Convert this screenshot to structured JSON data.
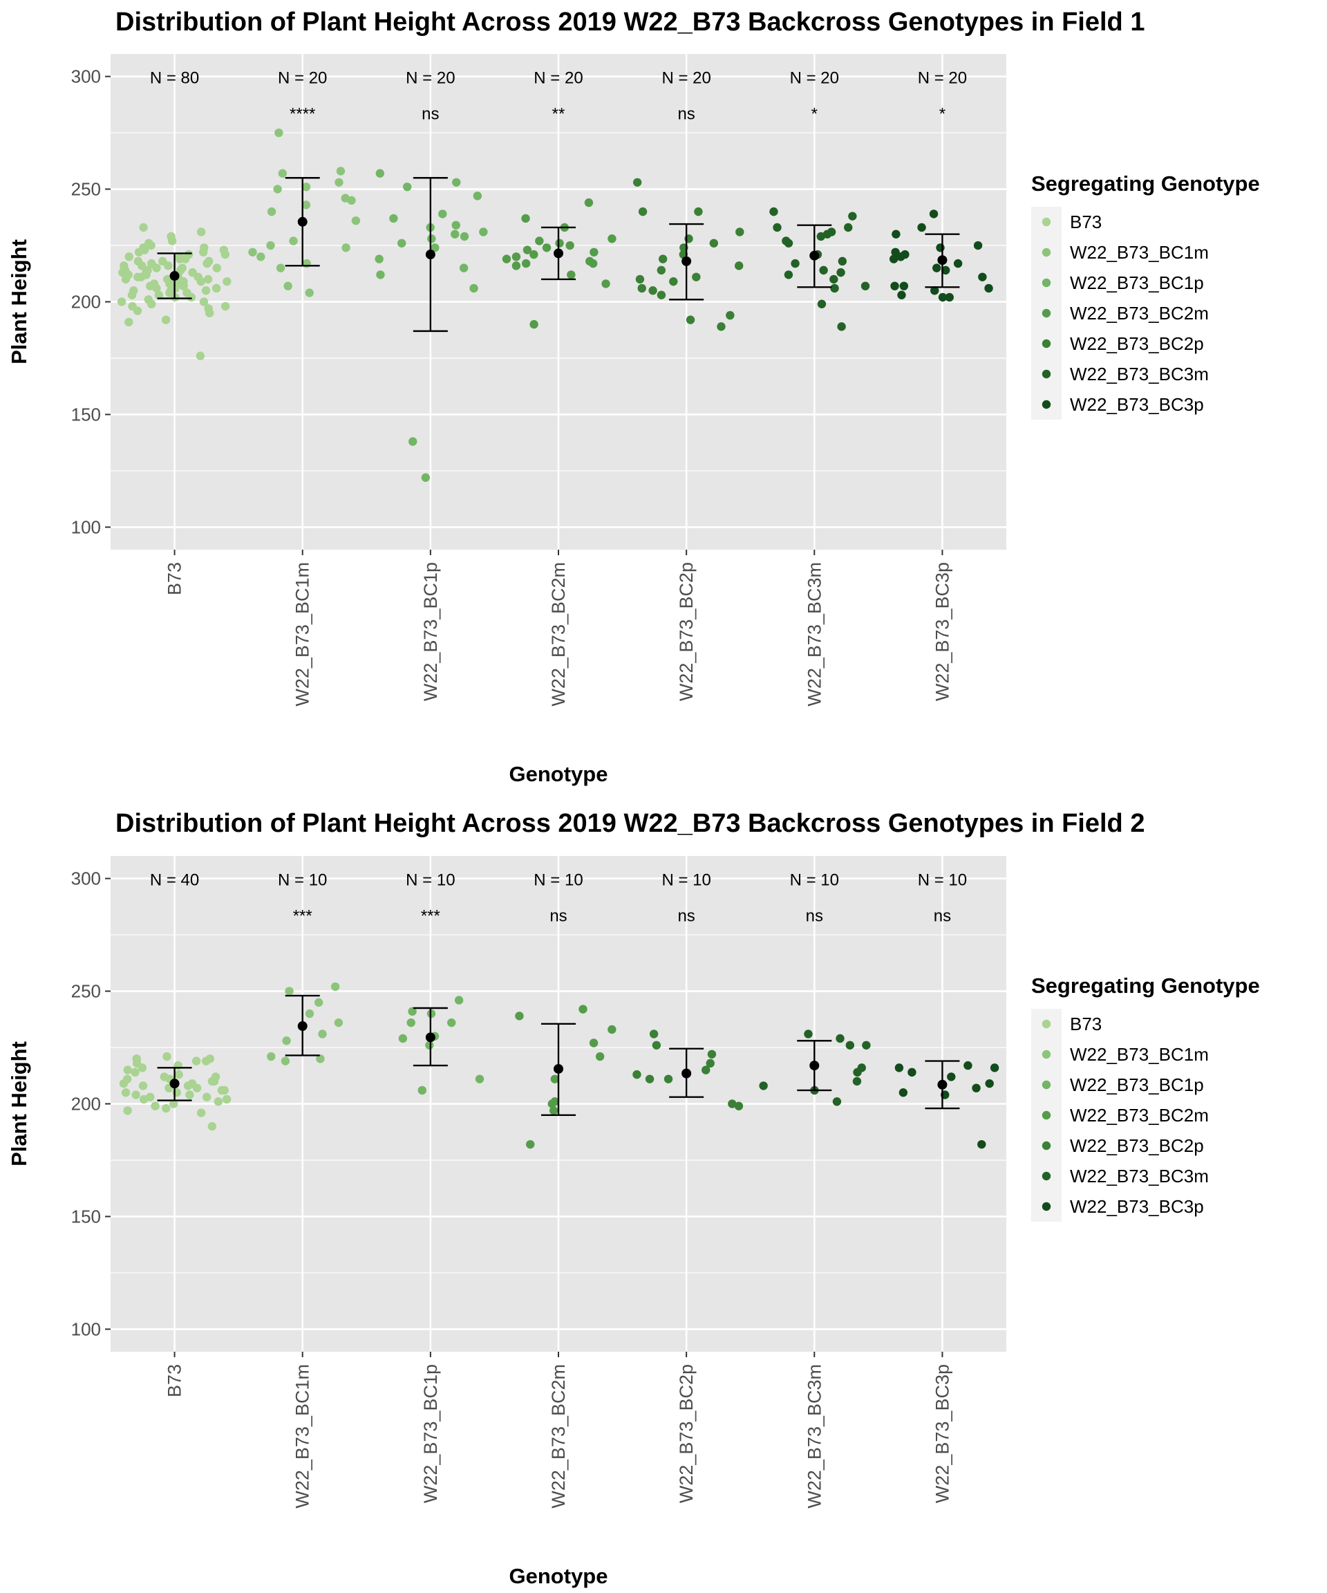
{
  "colors": {
    "panel_bg": "#e6e6e6",
    "grid": "#ffffff",
    "text": "#000000",
    "tick_text": "#4d4d4d",
    "mean_marker": "#000000",
    "genotype_colors": [
      "#a8d391",
      "#8dc47c",
      "#72b565",
      "#549c4a",
      "#3a8035",
      "#236226",
      "#124b1c"
    ]
  },
  "chart_data": [
    {
      "type": "scatter",
      "title": "Distribution of Plant Height Across 2019 W22_B73 Backcross Genotypes in Field 1",
      "xlabel": "Genotype",
      "ylabel": "Plant Height",
      "ylim": [
        90,
        310
      ],
      "yticks": [
        100,
        150,
        200,
        250,
        300
      ],
      "legend_title": "Segregating Genotype",
      "legend_position": "right",
      "categories": [
        "B73",
        "W22_B73_BC1m",
        "W22_B73_BC1p",
        "W22_B73_BC2m",
        "W22_B73_BC2p",
        "W22_B73_BC3m",
        "W22_B73_BC3p"
      ],
      "legend_entries": [
        "B73",
        "W22_B73_BC1m",
        "W22_B73_BC1p",
        "W22_B73_BC2m",
        "W22_B73_BC2p",
        "W22_B73_BC3m",
        "W22_B73_BC3p"
      ],
      "n_labels": [
        "N = 80",
        "N = 20",
        "N = 20",
        "N = 20",
        "N = 20",
        "N = 20",
        "N = 20"
      ],
      "significance": [
        "",
        "****",
        "ns",
        "**",
        "ns",
        "*",
        "*"
      ],
      "means": [
        211.5,
        235.5,
        221.0,
        221.5,
        218.0,
        220.5,
        218.5
      ],
      "error_low": [
        201.5,
        216.0,
        187.0,
        210.0,
        201.0,
        206.5,
        206.5
      ],
      "error_high": [
        221.5,
        255.0,
        255.0,
        233.0,
        234.5,
        234.0,
        230.0
      ],
      "points": [
        [
          176,
          191,
          192,
          195,
          196,
          197,
          198,
          198,
          199,
          200,
          200,
          201,
          202,
          202,
          203,
          203,
          204,
          204,
          205,
          205,
          205,
          206,
          206,
          206,
          207,
          207,
          207,
          208,
          208,
          208,
          209,
          209,
          209,
          210,
          210,
          210,
          210,
          211,
          211,
          211,
          211,
          212,
          212,
          212,
          212,
          213,
          213,
          213,
          214,
          214,
          214,
          215,
          215,
          215,
          216,
          216,
          216,
          217,
          217,
          218,
          218,
          218,
          219,
          219,
          220,
          220,
          221,
          221,
          222,
          222,
          223,
          223,
          224,
          224,
          225,
          226,
          227,
          229,
          231,
          233
        ],
        [
          204,
          207,
          215,
          217,
          220,
          222,
          224,
          225,
          227,
          236,
          240,
          243,
          245,
          246,
          250,
          251,
          253,
          257,
          258,
          275
        ],
        [
          122,
          138,
          206,
          212,
          215,
          219,
          224,
          226,
          228,
          229,
          230,
          231,
          233,
          234,
          237,
          239,
          247,
          251,
          253,
          257
        ],
        [
          190,
          208,
          212,
          216,
          217,
          217,
          218,
          219,
          220,
          221,
          222,
          223,
          224,
          225,
          226,
          227,
          228,
          233,
          237,
          244
        ],
        [
          189,
          192,
          194,
          203,
          205,
          206,
          209,
          210,
          211,
          214,
          216,
          219,
          221,
          224,
          226,
          228,
          231,
          240,
          240,
          253
        ],
        [
          189,
          199,
          206,
          207,
          210,
          212,
          213,
          214,
          217,
          218,
          221,
          226,
          227,
          229,
          230,
          231,
          233,
          233,
          238,
          240
        ],
        [
          202,
          202,
          203,
          205,
          206,
          207,
          207,
          211,
          214,
          215,
          217,
          219,
          220,
          221,
          222,
          224,
          225,
          230,
          233,
          239
        ]
      ]
    },
    {
      "type": "scatter",
      "title": "Distribution of Plant Height Across 2019 W22_B73 Backcross Genotypes in Field 2",
      "xlabel": "Genotype",
      "ylabel": "Plant Height",
      "ylim": [
        90,
        310
      ],
      "yticks": [
        100,
        150,
        200,
        250,
        300
      ],
      "legend_title": "Segregating Genotype",
      "legend_position": "right",
      "categories": [
        "B73",
        "W22_B73_BC1m",
        "W22_B73_BC1p",
        "W22_B73_BC2m",
        "W22_B73_BC2p",
        "W22_B73_BC3m",
        "W22_B73_BC3p"
      ],
      "legend_entries": [
        "B73",
        "W22_B73_BC1m",
        "W22_B73_BC1p",
        "W22_B73_BC2m",
        "W22_B73_BC2p",
        "W22_B73_BC3m",
        "W22_B73_BC3p"
      ],
      "n_labels": [
        "N = 40",
        "N = 10",
        "N = 10",
        "N = 10",
        "N = 10",
        "N = 10",
        "N = 10"
      ],
      "significance": [
        "",
        "***",
        "***",
        "ns",
        "ns",
        "ns",
        "ns"
      ],
      "means": [
        209.0,
        234.5,
        229.5,
        215.5,
        213.5,
        217.0,
        208.5
      ],
      "error_low": [
        201.5,
        221.5,
        217.0,
        195.0,
        203.0,
        206.0,
        198.0
      ],
      "error_high": [
        216.0,
        248.0,
        242.5,
        235.5,
        224.5,
        228.0,
        219.0
      ],
      "points": [
        [
          190,
          196,
          197,
          198,
          199,
          200,
          201,
          202,
          202,
          203,
          203,
          204,
          204,
          205,
          205,
          206,
          206,
          207,
          207,
          208,
          208,
          209,
          209,
          210,
          210,
          211,
          211,
          212,
          212,
          213,
          214,
          215,
          216,
          217,
          218,
          219,
          219,
          220,
          220,
          221
        ],
        [
          219,
          220,
          221,
          228,
          231,
          236,
          240,
          245,
          250,
          252
        ],
        [
          206,
          211,
          226,
          229,
          230,
          236,
          236,
          240,
          241,
          246
        ],
        [
          182,
          197,
          200,
          201,
          211,
          221,
          227,
          233,
          239,
          242
        ],
        [
          199,
          200,
          211,
          211,
          213,
          215,
          218,
          222,
          226,
          231
        ],
        [
          201,
          206,
          208,
          210,
          214,
          216,
          226,
          226,
          229,
          231
        ],
        [
          182,
          204,
          205,
          207,
          209,
          212,
          214,
          216,
          216,
          217
        ]
      ]
    }
  ]
}
